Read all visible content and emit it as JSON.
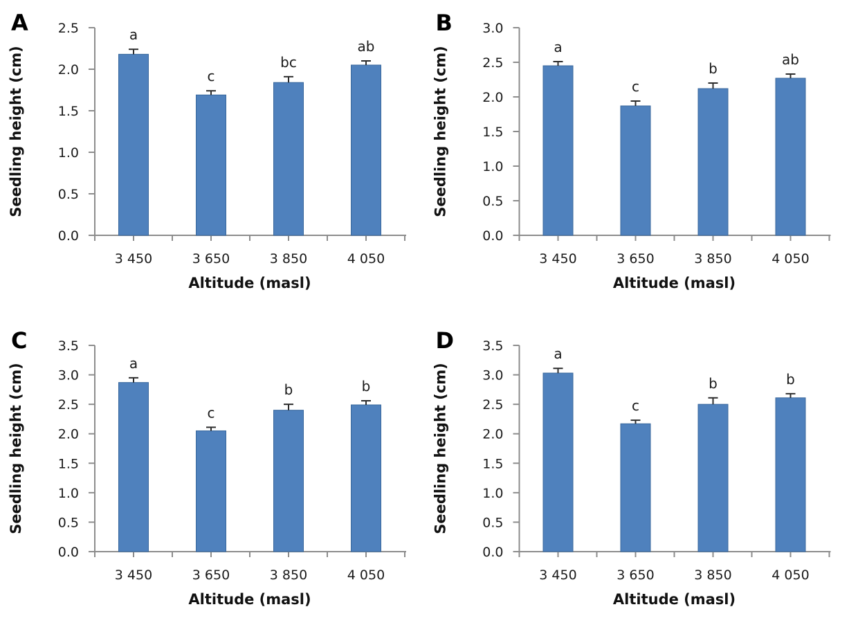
{
  "figure": {
    "background": "#ffffff",
    "bar_fill": "#4F81BD",
    "bar_stroke": "#38679C",
    "axis_color": "#8C8C8C",
    "error_color": "#2B2B2B",
    "text_color": "#1A1A1A",
    "title_color": "#111111"
  },
  "chart_data": [
    {
      "type": "bar",
      "panel_label": "A",
      "xlabel": "Altitude (masl)",
      "ylabel": "Seedling height (cm)",
      "categories": [
        "3 450",
        "3 650",
        "3 850",
        "4 050"
      ],
      "values": [
        2.18,
        1.69,
        1.84,
        2.05
      ],
      "errors": [
        0.06,
        0.05,
        0.07,
        0.05
      ],
      "letters": [
        "a",
        "c",
        "bc",
        "ab"
      ],
      "ylim": [
        0,
        2.5
      ],
      "ystep": 0.5,
      "grid": false,
      "legend": "none"
    },
    {
      "type": "bar",
      "panel_label": "B",
      "xlabel": "Altitude (masl)",
      "ylabel": "Seedling height (cm)",
      "categories": [
        "3 450",
        "3 650",
        "3 850",
        "4 050"
      ],
      "values": [
        2.45,
        1.87,
        2.12,
        2.27
      ],
      "errors": [
        0.06,
        0.07,
        0.08,
        0.06
      ],
      "letters": [
        "a",
        "c",
        "b",
        "ab"
      ],
      "ylim": [
        0,
        3.0
      ],
      "ystep": 0.5,
      "grid": false,
      "legend": "none"
    },
    {
      "type": "bar",
      "panel_label": "C",
      "xlabel": "Altitude (masl)",
      "ylabel": "Seedling height (cm)",
      "categories": [
        "3 450",
        "3 650",
        "3 850",
        "4 050"
      ],
      "values": [
        2.87,
        2.05,
        2.4,
        2.49
      ],
      "errors": [
        0.08,
        0.06,
        0.1,
        0.07
      ],
      "letters": [
        "a",
        "c",
        "b",
        "b"
      ],
      "ylim": [
        0,
        3.5
      ],
      "ystep": 0.5,
      "grid": false,
      "legend": "none"
    },
    {
      "type": "bar",
      "panel_label": "D",
      "xlabel": "Altitude (masl)",
      "ylabel": "Seedling height (cm)",
      "categories": [
        "3 450",
        "3 650",
        "3 850",
        "4 050"
      ],
      "values": [
        3.03,
        2.17,
        2.5,
        2.61
      ],
      "errors": [
        0.08,
        0.06,
        0.11,
        0.07
      ],
      "letters": [
        "a",
        "c",
        "b",
        "b"
      ],
      "ylim": [
        0,
        3.5
      ],
      "ystep": 0.5,
      "grid": false,
      "legend": "none"
    }
  ]
}
